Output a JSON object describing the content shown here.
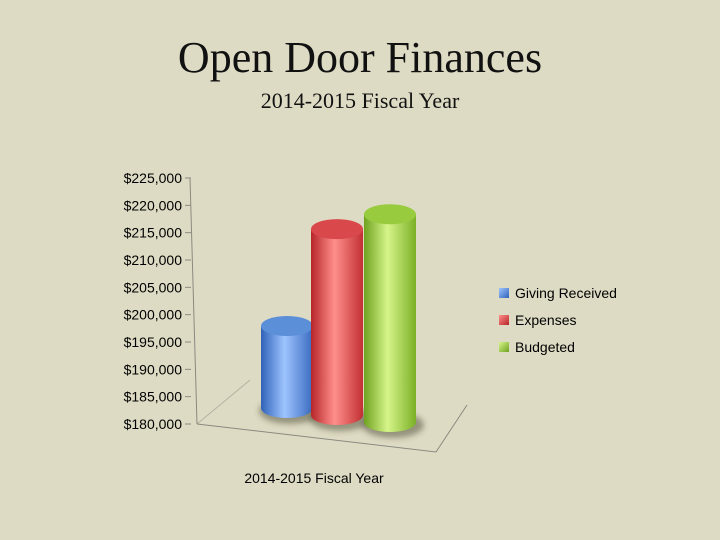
{
  "title": "Open Door Finances",
  "subtitle": "2014-2015 Fiscal Year",
  "chart_data": {
    "type": "bar",
    "style": "3d-cylinder",
    "categories": [
      "2014-2015 Fiscal Year"
    ],
    "series": [
      {
        "name": "Giving Received",
        "values": [
          195000
        ],
        "color": "#5b8fd8"
      },
      {
        "name": "Expenses",
        "values": [
          214000
        ],
        "color": "#d9484b"
      },
      {
        "name": "Budgeted",
        "values": [
          218000
        ],
        "color": "#98cc3e"
      }
    ],
    "ylim": [
      180000,
      225000
    ],
    "yticks": [
      "$180,000",
      "$185,000",
      "$190,000",
      "$195,000",
      "$200,000",
      "$205,000",
      "$210,000",
      "$215,000",
      "$220,000",
      "$225,000"
    ],
    "xlabel": "",
    "ylabel": "",
    "legend_position": "right",
    "grid": false
  }
}
